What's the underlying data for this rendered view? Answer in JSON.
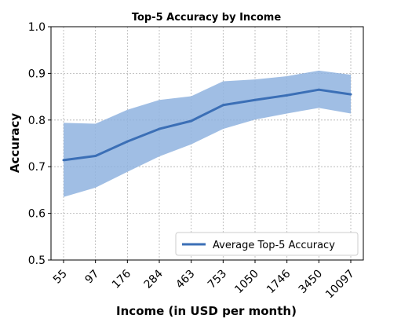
{
  "chart_data": {
    "type": "line",
    "title": "Top-5 Accuracy by Income",
    "xlabel": "Income (in USD per month)",
    "ylabel": "Accuracy",
    "categories": [
      "55",
      "97",
      "176",
      "284",
      "463",
      "753",
      "1050",
      "1746",
      "3450",
      "10097"
    ],
    "ylim": [
      0.5,
      1.0
    ],
    "yticks": [
      "0.5",
      "0.6",
      "0.7",
      "0.8",
      "0.9",
      "1.0"
    ],
    "grid": true,
    "legend_position": "lower-right",
    "series": [
      {
        "name": "Average Top-5 Accuracy",
        "values": [
          0.714,
          0.723,
          0.754,
          0.781,
          0.798,
          0.832,
          0.843,
          0.853,
          0.865,
          0.855
        ],
        "band_upper": [
          0.794,
          0.792,
          0.822,
          0.843,
          0.851,
          0.883,
          0.887,
          0.894,
          0.906,
          0.897
        ],
        "band_lower": [
          0.635,
          0.655,
          0.689,
          0.722,
          0.748,
          0.781,
          0.801,
          0.814,
          0.826,
          0.814
        ],
        "color": "#3b6fb6",
        "band_color": "#8fb3df"
      }
    ]
  }
}
